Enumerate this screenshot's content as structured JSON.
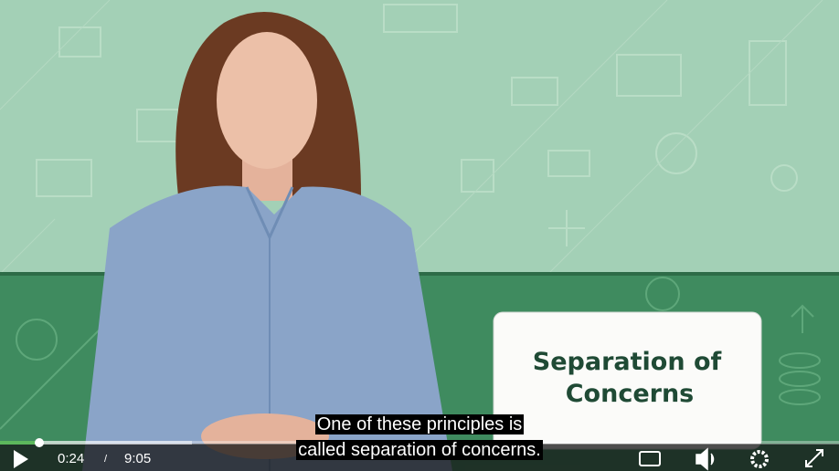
{
  "slide_card": {
    "lines": [
      "Separation of",
      "Concerns"
    ]
  },
  "captions": [
    "One of these principles is",
    "called separation of concerns."
  ],
  "controls": {
    "current_time": "0:24",
    "separator": "/",
    "duration": "9:05"
  }
}
